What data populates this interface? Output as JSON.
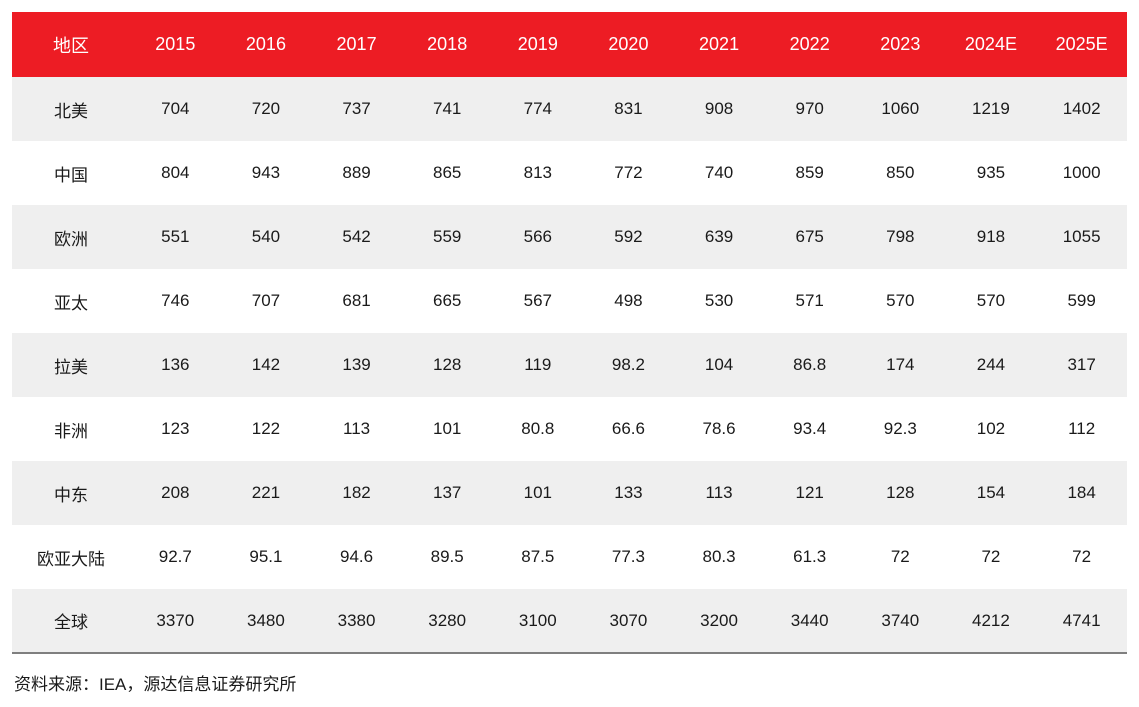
{
  "colors": {
    "header_bg": "#ed1c24",
    "header_text": "#ffffff",
    "row_alt_bg": "#efefef",
    "row_bg": "#ffffff",
    "body_text": "#1a1a1a",
    "rule": "#7f7f7f"
  },
  "source_note": "资料来源：IEA，源达信息证券研究所",
  "chart_data": {
    "type": "table",
    "title": "",
    "columns": [
      "地区",
      "2015",
      "2016",
      "2017",
      "2018",
      "2019",
      "2020",
      "2021",
      "2022",
      "2023",
      "2024E",
      "2025E"
    ],
    "rows": [
      {
        "region": "北美",
        "values": [
          704,
          720,
          737,
          741,
          774,
          831,
          908,
          970,
          1060,
          1219,
          1402
        ]
      },
      {
        "region": "中国",
        "values": [
          804,
          943,
          889,
          865,
          813,
          772,
          740,
          859,
          850,
          935,
          1000
        ]
      },
      {
        "region": "欧洲",
        "values": [
          551,
          540,
          542,
          559,
          566,
          592,
          639,
          675,
          798,
          918,
          1055
        ]
      },
      {
        "region": "亚太",
        "values": [
          746,
          707,
          681,
          665,
          567,
          498,
          530,
          571,
          570,
          570,
          599
        ]
      },
      {
        "region": "拉美",
        "values": [
          136,
          142,
          139,
          128,
          119,
          98.2,
          104,
          86.8,
          174,
          244,
          317
        ]
      },
      {
        "region": "非洲",
        "values": [
          123,
          122,
          113,
          101,
          80.8,
          66.6,
          78.6,
          93.4,
          92.3,
          102,
          112
        ]
      },
      {
        "region": "中东",
        "values": [
          208,
          221,
          182,
          137,
          101,
          133,
          113,
          121,
          128,
          154,
          184
        ]
      },
      {
        "region": "欧亚大陆",
        "values": [
          92.7,
          95.1,
          94.6,
          89.5,
          87.5,
          77.3,
          80.3,
          61.3,
          72,
          72,
          72
        ]
      },
      {
        "region": "全球",
        "values": [
          3370,
          3480,
          3380,
          3280,
          3100,
          3070,
          3200,
          3440,
          3740,
          4212,
          4741
        ]
      }
    ]
  }
}
